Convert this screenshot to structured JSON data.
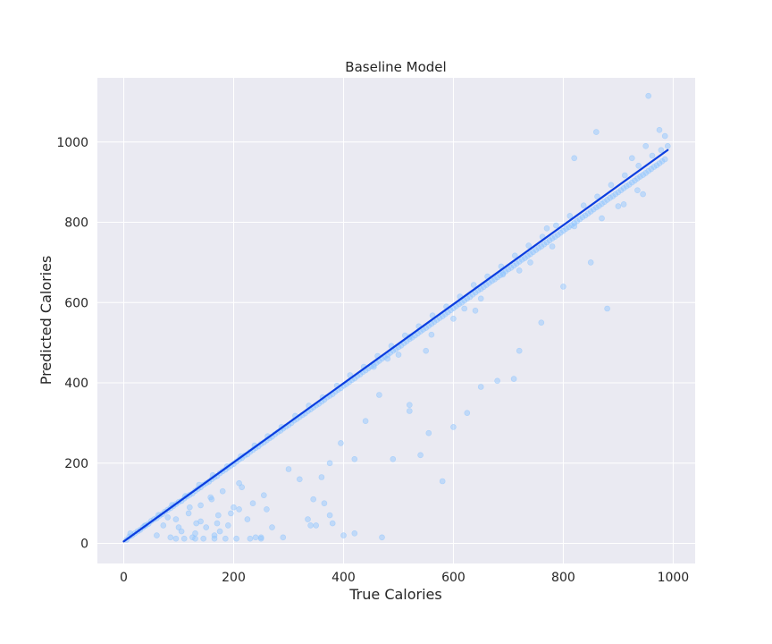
{
  "chart_data": {
    "type": "scatter",
    "title": "Baseline Model",
    "xlabel": "True Calories",
    "ylabel": "Predicted Calories",
    "xlim": [
      -48,
      1040
    ],
    "ylim": [
      -50,
      1160
    ],
    "xticks": [
      0,
      200,
      400,
      600,
      800,
      1000
    ],
    "yticks": [
      0,
      200,
      400,
      600,
      800,
      1000
    ],
    "xtick_labels": [
      "0",
      "200",
      "400",
      "600",
      "800",
      "1000"
    ],
    "ytick_labels": [
      "0",
      "200",
      "400",
      "600",
      "800",
      "1000"
    ],
    "grid": true,
    "legend": "none",
    "colors": {
      "background": "#eaeaf2",
      "grid": "#ffffff",
      "points": "#8ec5ff",
      "fit_line": "#0b3ee0"
    },
    "fit_line": {
      "x": [
        0,
        990
      ],
      "y": [
        5,
        980
      ]
    },
    "series": [
      {
        "type": "scatter",
        "alpha": 0.45,
        "x": [
          5,
          10,
          15,
          20,
          25,
          30,
          35,
          40,
          45,
          50,
          55,
          60,
          65,
          70,
          75,
          80,
          85,
          90,
          95,
          100,
          105,
          110,
          115,
          120,
          125,
          130,
          135,
          140,
          145,
          150,
          155,
          160,
          165,
          170,
          175,
          180,
          185,
          190,
          195,
          200,
          205,
          210,
          215,
          220,
          225,
          230,
          235,
          240,
          245,
          250,
          255,
          260,
          265,
          270,
          275,
          280,
          285,
          290,
          295,
          300,
          305,
          310,
          315,
          320,
          325,
          330,
          335,
          340,
          345,
          350,
          355,
          360,
          365,
          370,
          375,
          380,
          385,
          390,
          395,
          400,
          405,
          410,
          415,
          420,
          425,
          430,
          435,
          440,
          445,
          450,
          455,
          460,
          465,
          470,
          475,
          480,
          485,
          490,
          495,
          500,
          505,
          510,
          515,
          520,
          525,
          530,
          535,
          540,
          545,
          550,
          555,
          560,
          565,
          570,
          575,
          580,
          585,
          590,
          595,
          600,
          605,
          610,
          615,
          620,
          625,
          630,
          635,
          640,
          645,
          650,
          655,
          660,
          665,
          670,
          675,
          680,
          685,
          690,
          695,
          700,
          705,
          710,
          715,
          720,
          725,
          730,
          735,
          740,
          745,
          750,
          755,
          760,
          765,
          770,
          775,
          780,
          785,
          790,
          795,
          800,
          805,
          810,
          815,
          820,
          825,
          830,
          835,
          840,
          845,
          850,
          855,
          860,
          865,
          870,
          875,
          880,
          885,
          890,
          895,
          900,
          905,
          910,
          915,
          920,
          925,
          930,
          935,
          940,
          945,
          950,
          955,
          960,
          965,
          970,
          975,
          980,
          985,
          12,
          38,
          63,
          88,
          112,
          137,
          162,
          188,
          213,
          238,
          262,
          287,
          312,
          337,
          362,
          388,
          412,
          437,
          462,
          487,
          512,
          537,
          562,
          587,
          612,
          637,
          662,
          687,
          712,
          737,
          762,
          787,
          812,
          837,
          862,
          887,
          912,
          937,
          962,
          60,
          72,
          85,
          95,
          105,
          118,
          125,
          132,
          140,
          150,
          158,
          165,
          172,
          180,
          190,
          200,
          210,
          225,
          240,
          255,
          270,
          95,
          110,
          130,
          145,
          165,
          185,
          205,
          230,
          250,
          80,
          100,
          120,
          140,
          160,
          175,
          195,
          215,
          235,
          260,
          300,
          320,
          345,
          360,
          375,
          395,
          420,
          440,
          465,
          490,
          520,
          540,
          555,
          600,
          625,
          650,
          680,
          720,
          760,
          800,
          850,
          880,
          335,
          350,
          365,
          375,
          400,
          455,
          480,
          500,
          520,
          550,
          560,
          600,
          620,
          650,
          690,
          720,
          740,
          780,
          820,
          870,
          900,
          910,
          935,
          945,
          925,
          950,
          978,
          990,
          975,
          985,
          955,
          860,
          820,
          770,
          710,
          640,
          580,
          520,
          470,
          420,
          380,
          340,
          290,
          250,
          210,
          170,
          130
        ],
        "y": [
          9,
          17,
          20,
          25,
          30,
          34,
          40,
          45,
          49,
          56,
          60,
          63,
          69,
          73,
          79,
          84,
          88,
          93,
          98,
          103,
          106,
          112,
          117,
          121,
          125,
          131,
          136,
          140,
          146,
          150,
          154,
          160,
          165,
          168,
          175,
          180,
          184,
          189,
          194,
          198,
          204,
          209,
          213,
          219,
          222,
          228,
          233,
          238,
          242,
          248,
          252,
          257,
          262,
          266,
          272,
          277,
          281,
          286,
          291,
          295,
          300,
          306,
          310,
          315,
          320,
          324,
          330,
          334,
          339,
          344,
          348,
          353,
          358,
          364,
          368,
          372,
          378,
          383,
          387,
          393,
          397,
          402,
          407,
          411,
          417,
          421,
          427,
          431,
          436,
          441,
          445,
          450,
          455,
          460,
          465,
          469,
          475,
          480,
          484,
          489,
          493,
          499,
          504,
          509,
          513,
          518,
          523,
          528,
          533,
          537,
          542,
          547,
          552,
          557,
          562,
          566,
          571,
          576,
          581,
          586,
          591,
          596,
          600,
          605,
          610,
          614,
          620,
          625,
          630,
          634,
          639,
          644,
          649,
          654,
          658,
          663,
          668,
          673,
          678,
          683,
          687,
          692,
          697,
          702,
          707,
          711,
          716,
          721,
          726,
          731,
          736,
          740,
          745,
          750,
          755,
          760,
          764,
          769,
          774,
          779,
          784,
          788,
          793,
          798,
          803,
          808,
          813,
          817,
          822,
          827,
          832,
          837,
          841,
          846,
          851,
          856,
          861,
          865,
          870,
          875,
          880,
          885,
          890,
          894,
          899,
          904,
          909,
          914,
          918,
          923,
          928,
          933,
          938,
          942,
          947,
          952,
          957,
          25,
          44,
          71,
          96,
          118,
          146,
          170,
          192,
          217,
          244,
          267,
          290,
          318,
          343,
          364,
          393,
          419,
          440,
          467,
          492,
          518,
          541,
          568,
          590,
          615,
          644,
          665,
          690,
          717,
          742,
          764,
          792,
          816,
          842,
          864,
          893,
          917,
          941,
          966,
          20,
          45,
          15,
          60,
          30,
          75,
          15,
          50,
          95,
          40,
          115,
          20,
          70,
          130,
          45,
          90,
          150,
          60,
          15,
          120,
          40,
          12,
          12,
          12,
          12,
          12,
          12,
          12,
          12,
          12,
          65,
          40,
          90,
          55,
          110,
          30,
          75,
          140,
          100,
          85,
          185,
          160,
          110,
          165,
          200,
          250,
          210,
          305,
          370,
          210,
          345,
          220,
          275,
          290,
          325,
          390,
          405,
          480,
          550,
          640,
          700,
          585,
          60,
          45,
          100,
          70,
          20,
          440,
          460,
          470,
          515,
          480,
          520,
          560,
          585,
          610,
          670,
          680,
          700,
          740,
          790,
          810,
          840,
          845,
          880,
          870,
          960,
          990,
          980,
          990,
          1030,
          1015,
          1115,
          1025,
          960,
          785,
          410,
          580,
          155,
          330,
          15,
          25,
          50,
          45,
          15,
          15,
          85,
          50,
          25
        ]
      }
    ]
  }
}
